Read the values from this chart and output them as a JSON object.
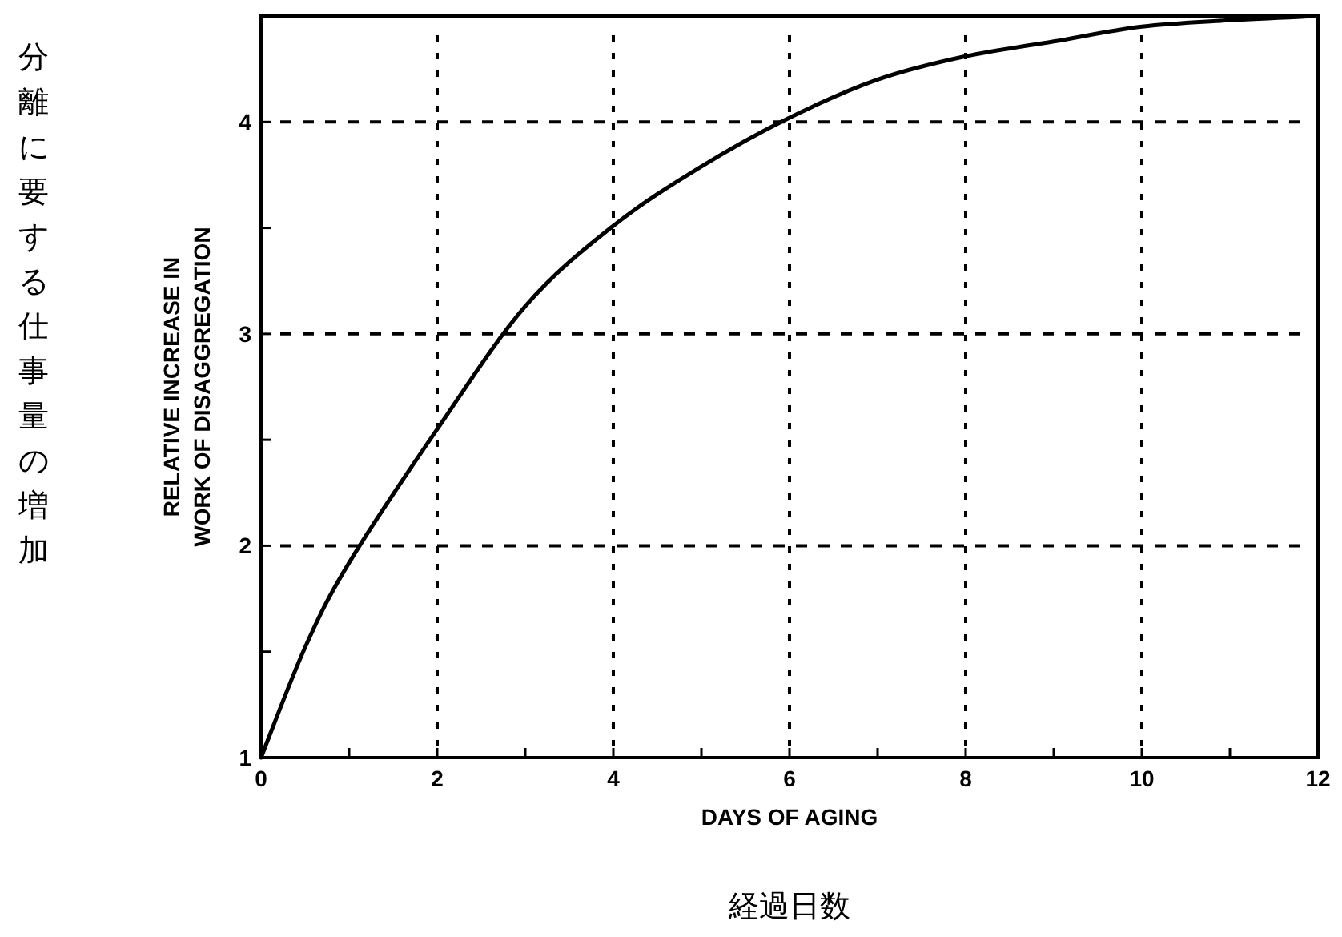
{
  "chart_data": {
    "type": "line",
    "xlabel": "DAYS OF AGING",
    "ylabel": "RELATIVE INCREASE IN WORK OF DISAGGREGATION",
    "annotations": [
      "分離に要する仕事量の増加",
      "経過日数"
    ],
    "x": [
      0,
      0.5,
      1,
      2,
      3,
      4,
      5,
      6,
      7,
      8,
      9,
      10,
      11,
      12
    ],
    "series": [
      {
        "color": "#000000",
        "values": [
          1,
          1.52,
          1.92,
          2.55,
          3.13,
          3.51,
          3.79,
          4.02,
          4.2,
          4.31,
          4.38,
          4.45,
          4.48,
          4.5
        ]
      }
    ],
    "xlim": [
      0,
      12
    ],
    "ylim": [
      1,
      4.5
    ],
    "xticks": [
      0,
      {
        "value": 1,
        "label": null
      },
      2,
      {
        "value": 3,
        "label": null
      },
      4,
      {
        "value": 5,
        "label": null
      },
      6,
      {
        "value": 7,
        "label": null
      },
      8,
      {
        "value": 9,
        "label": null
      },
      10,
      {
        "value": 11,
        "label": null
      },
      12
    ],
    "yticks": [
      1,
      {
        "value": 1.5,
        "label": null
      },
      2,
      {
        "value": 2.5,
        "label": null
      },
      3,
      {
        "value": 3.5,
        "label": null
      },
      4
    ],
    "grid": true,
    "marker": "none",
    "line_style": "solid"
  }
}
